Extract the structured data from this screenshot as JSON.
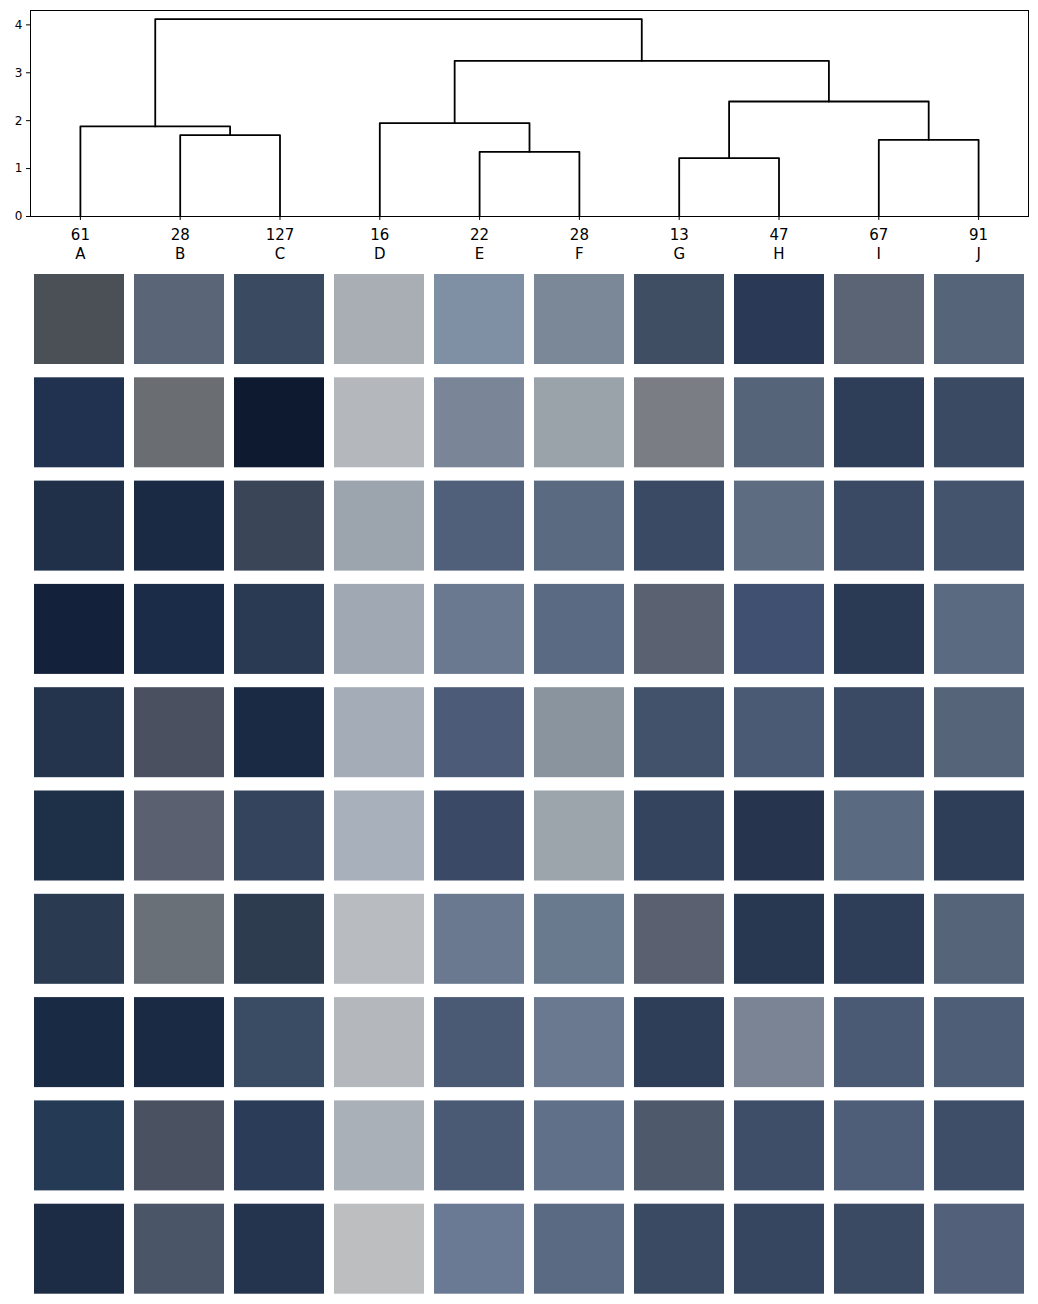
{
  "chart_data": {
    "type": "dendrogram",
    "categories": [
      "A",
      "B",
      "C",
      "D",
      "E",
      "F",
      "G",
      "H",
      "I",
      "J"
    ],
    "counts": [
      61,
      28,
      127,
      16,
      22,
      28,
      13,
      47,
      67,
      91
    ],
    "merges": [
      {
        "left": 6,
        "right": 7,
        "height": 1.22
      },
      {
        "left": 4,
        "right": 5,
        "height": 1.35
      },
      {
        "left": 8,
        "right": 9,
        "height": 1.6
      },
      {
        "left": 1,
        "right": 2,
        "height": 1.7
      },
      {
        "left": 0,
        "right": 13,
        "height": 1.88
      },
      {
        "left": 3,
        "right": 11,
        "height": 1.95
      },
      {
        "left": 10,
        "right": 12,
        "height": 2.4
      },
      {
        "left": 15,
        "right": 16,
        "height": 3.25
      },
      {
        "left": 14,
        "right": 17,
        "height": 4.12
      }
    ],
    "color": "#000000",
    "xlim": [
      -0.5,
      9.5
    ],
    "ylim": [
      0,
      4.3
    ],
    "yticks": [
      0,
      1,
      2,
      3,
      4
    ],
    "thumbnail_colors": [
      [
        "#4b4f56",
        "#203250",
        "#1f3048",
        "#14213a",
        "#24344c",
        "#1e2f48",
        "#2a3a50",
        "#182a44",
        "#253a55",
        "#1c2c44"
      ],
      [
        "#5a6678",
        "#6a6e72",
        "#1a2a44",
        "#1a2c48",
        "#4a5060",
        "#5a6070",
        "#6a7078",
        "#1a2a44",
        "#4a5262",
        "#4a5668"
      ],
      [
        "#3a4a60",
        "#0e1a30",
        "#3a4558",
        "#2a3a52",
        "#1a2a44",
        "#34445c",
        "#2e3c50",
        "#3a4c64",
        "#2a3c58",
        "#24344e"
      ],
      [
        "#a8aeb4",
        "#b4b8bc",
        "#9ca4ae",
        "#a0a8b4",
        "#a4acb8",
        "#a8b0bc",
        "#b8bcc0",
        "#b4b8bc",
        "#aab0b8",
        "#bcbec0"
      ],
      [
        "#8090a4",
        "#7a8698",
        "#50607a",
        "#6a7890",
        "#4c5c78",
        "#3a4a66",
        "#6a7890",
        "#4a5a74",
        "#4a5a74",
        "#6a7a94"
      ],
      [
        "#7a8898",
        "#9aa2aa",
        "#5a6a80",
        "#5a6a82",
        "#8a949e",
        "#9ca4ac",
        "#6a7a8e",
        "#6a7890",
        "#607088",
        "#5a6a82"
      ],
      [
        "#404e64",
        "#7a7e84",
        "#3a4a64",
        "#5a6272",
        "#42526a",
        "#34445e",
        "#5a6070",
        "#2e3e58",
        "#4e5a6c",
        "#3a4a62"
      ],
      [
        "#2a3a56",
        "#56647a",
        "#5e6c82",
        "#405070",
        "#4a5a74",
        "#26344e",
        "#283850",
        "#7a8494",
        "#3e4e68",
        "#364660"
      ],
      [
        "#5a6474",
        "#2e3e58",
        "#3a4a64",
        "#2a3a54",
        "#3a4a64",
        "#5a6a80",
        "#2e3e58",
        "#4a5a74",
        "#4e5e78",
        "#3a4a62"
      ],
      [
        "#56647a",
        "#3a4a62",
        "#44546c",
        "#5a6a80",
        "#56647a",
        "#2e3e58",
        "#56647a",
        "#4e5e76",
        "#3e4e68",
        "#52607a"
      ]
    ]
  }
}
